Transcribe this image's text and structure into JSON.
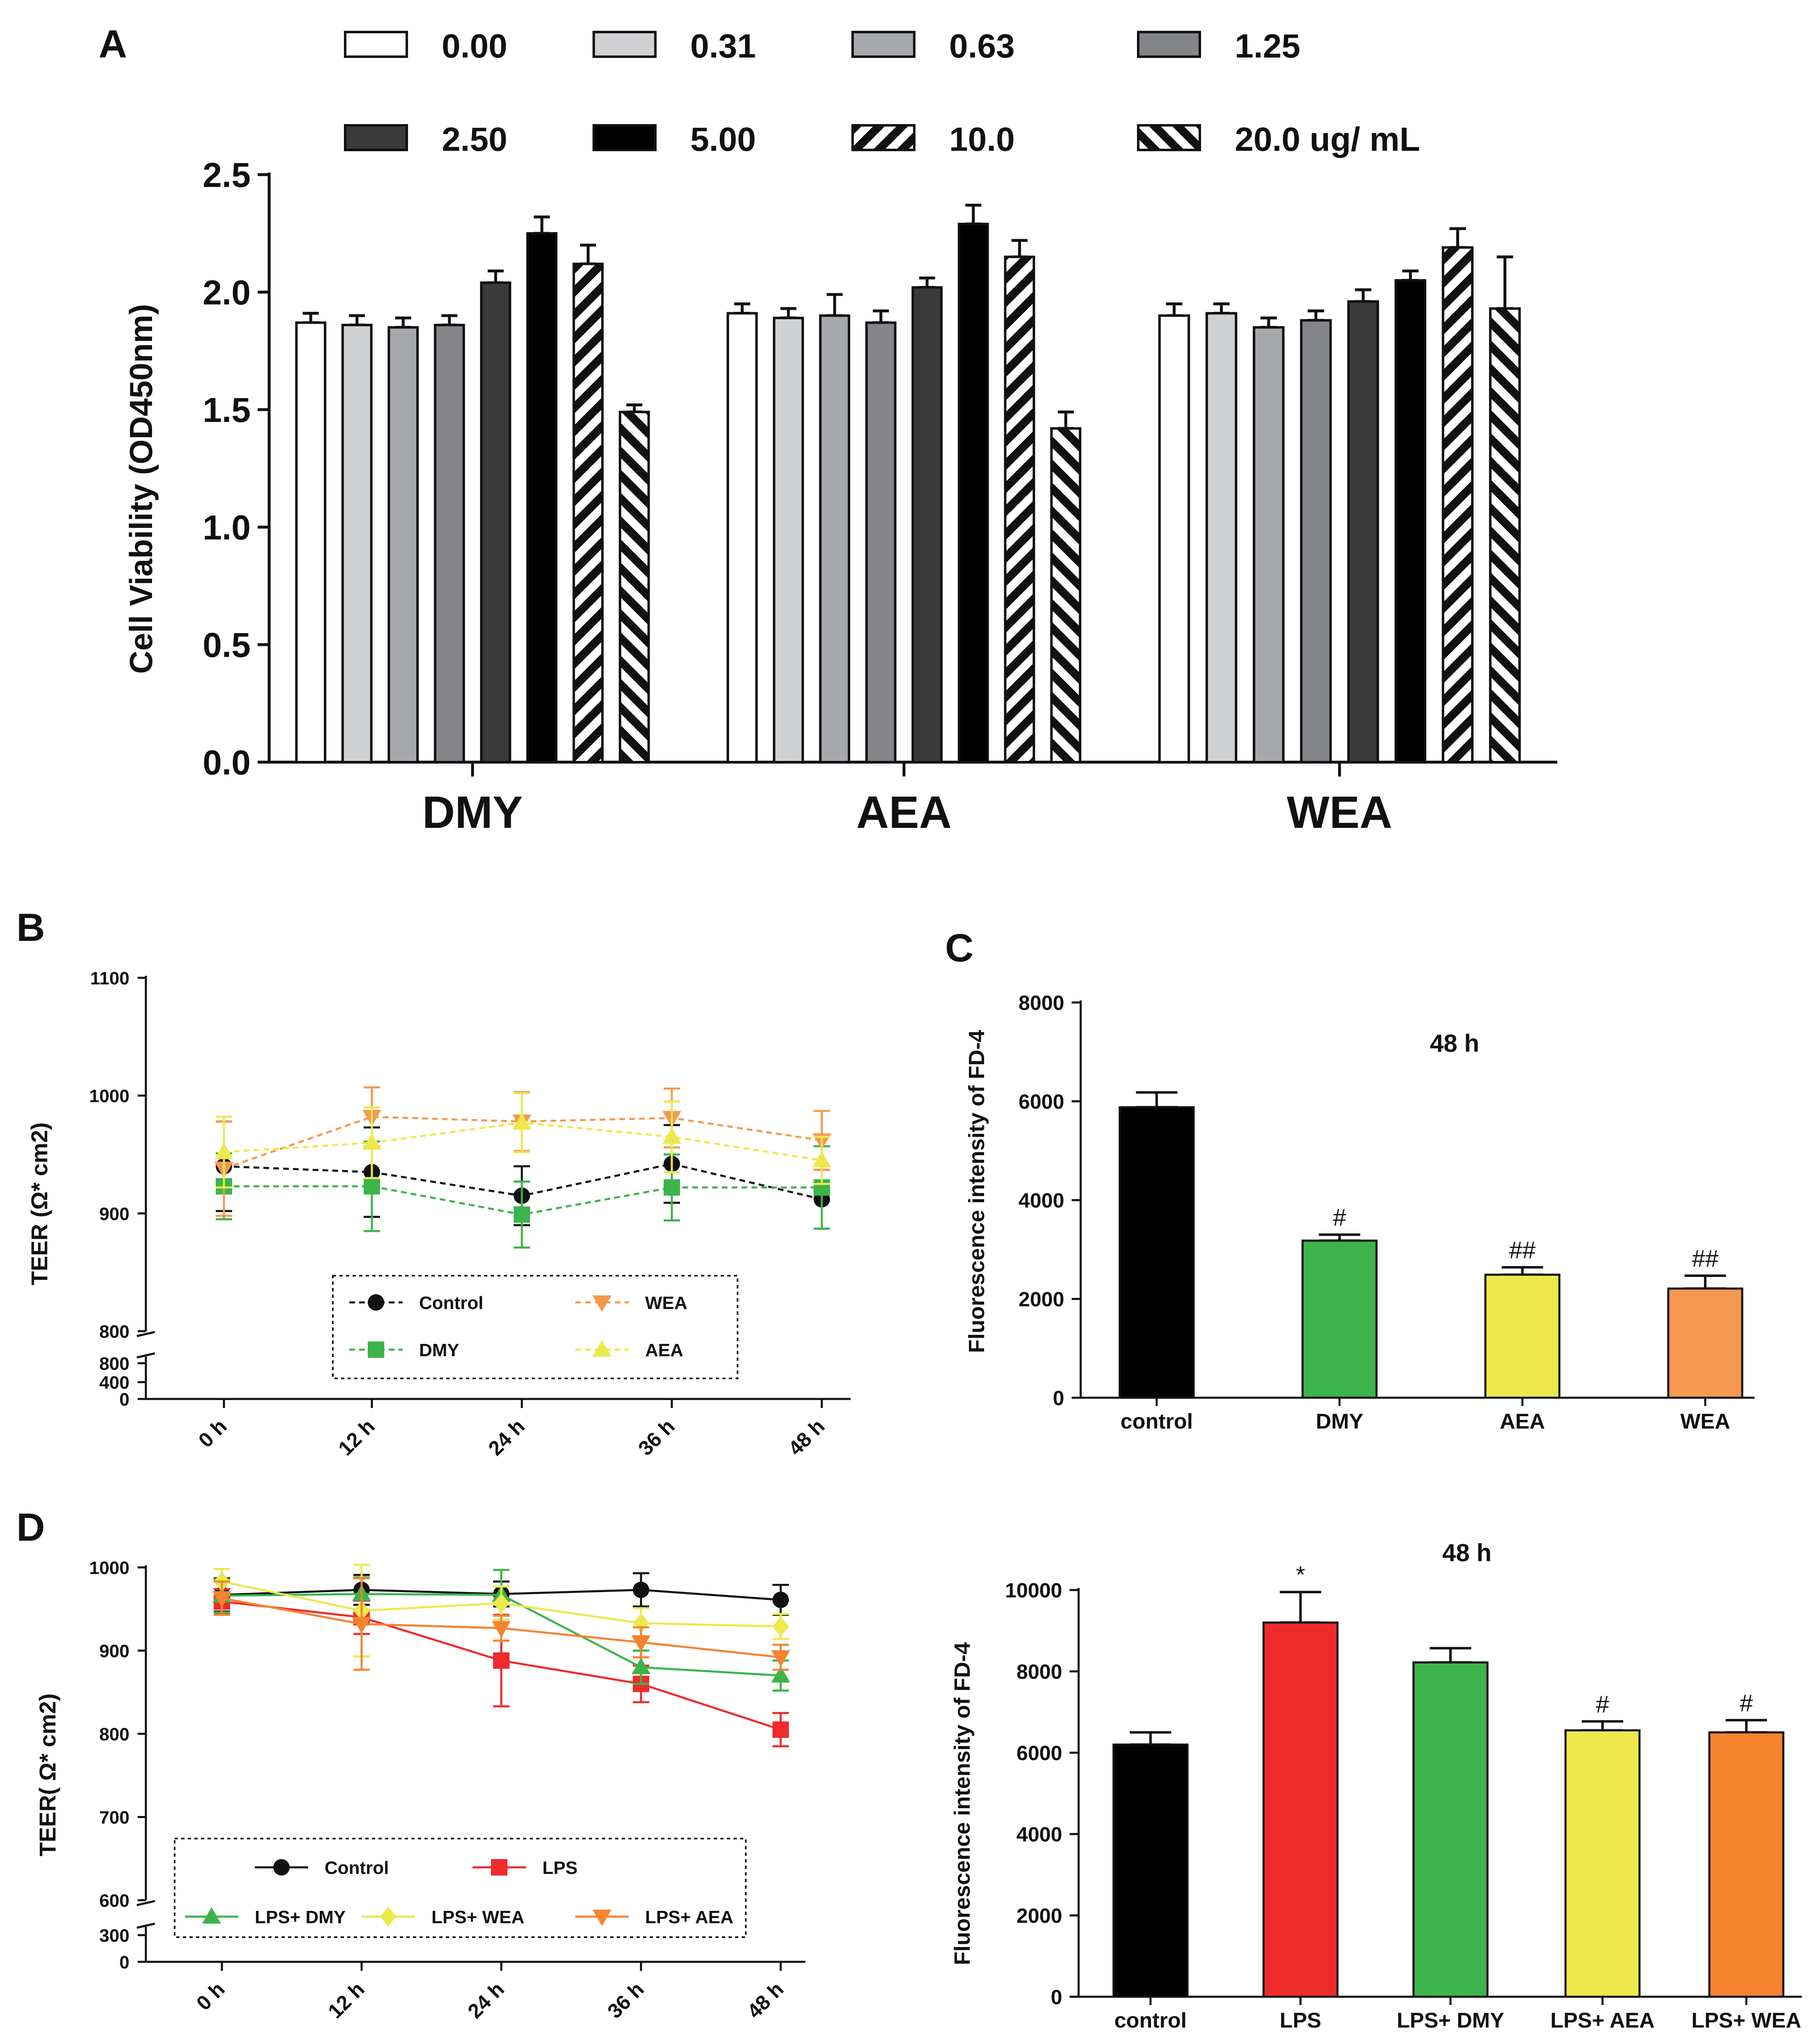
{
  "colors": {
    "black": "#000000",
    "green": "#3cb44b",
    "yellow": "#ede84c",
    "orange": "#f4994f",
    "red": "#ef2b2b",
    "orangeD": "#f58330"
  },
  "chart_data": [
    {
      "id": "A",
      "type": "bar",
      "panel_label": "A",
      "ylabel": "Cell Viability (OD450nm)",
      "ylim": [
        0,
        2.5
      ],
      "yticks": [
        "0.0",
        "0.5",
        "1.0",
        "1.5",
        "2.0",
        "2.5"
      ],
      "categories": [
        "DMY",
        "AEA",
        "WEA"
      ],
      "legend": [
        "0.00",
        "0.31",
        "0.63",
        "1.25",
        "2.50",
        "5.00",
        "10.0",
        "20.0 ug/ mL"
      ],
      "series": [
        {
          "name": "0.00",
          "values": [
            1.87,
            1.91,
            1.9
          ],
          "errors": [
            0.04,
            0.04,
            0.05
          ]
        },
        {
          "name": "0.31",
          "values": [
            1.86,
            1.89,
            1.91
          ],
          "errors": [
            0.04,
            0.04,
            0.04
          ]
        },
        {
          "name": "0.63",
          "values": [
            1.85,
            1.9,
            1.85
          ],
          "errors": [
            0.04,
            0.09,
            0.04
          ]
        },
        {
          "name": "1.25",
          "values": [
            1.86,
            1.87,
            1.88
          ],
          "errors": [
            0.04,
            0.05,
            0.04
          ]
        },
        {
          "name": "2.50",
          "values": [
            2.04,
            2.02,
            1.96
          ],
          "errors": [
            0.05,
            0.04,
            0.05
          ]
        },
        {
          "name": "5.00",
          "values": [
            2.25,
            2.29,
            2.05
          ],
          "errors": [
            0.07,
            0.08,
            0.04
          ]
        },
        {
          "name": "10.0",
          "values": [
            2.12,
            2.15,
            2.19
          ],
          "errors": [
            0.08,
            0.07,
            0.08
          ]
        },
        {
          "name": "20.0 ug/ mL",
          "values": [
            1.49,
            1.42,
            1.93
          ],
          "errors": [
            0.03,
            0.07,
            0.22
          ]
        }
      ]
    },
    {
      "id": "B",
      "type": "line",
      "panel_label": "B",
      "ylabel": "TEER (Ω* cm2)",
      "x": [
        "0 h",
        "12 h",
        "24 h",
        "36 h",
        "48 h"
      ],
      "yticks_upper": [
        "800",
        "900",
        "1000",
        "1100"
      ],
      "yticks_lower": [
        "800",
        "400",
        "0"
      ],
      "ylim": [
        800,
        1100
      ],
      "series": [
        {
          "name": "Control",
          "values": [
            940,
            935,
            915,
            942,
            912
          ],
          "errors": [
            38,
            38,
            25,
            33,
            25
          ]
        },
        {
          "name": "DMY",
          "values": [
            923,
            923,
            899,
            922,
            922
          ],
          "errors": [
            28,
            38,
            28,
            28,
            35
          ]
        },
        {
          "name": "WEA",
          "values": [
            938,
            982,
            978,
            981,
            962
          ],
          "errors": [
            40,
            25,
            25,
            25,
            25
          ]
        },
        {
          "name": "AEA",
          "values": [
            952,
            960,
            977,
            965,
            945
          ],
          "errors": [
            30,
            30,
            25,
            30,
            20
          ]
        }
      ]
    },
    {
      "id": "C",
      "type": "bar",
      "panel_label": "C",
      "title": "48 h",
      "ylabel": "Fluorescence intensity of FD-4",
      "ylim": [
        0,
        8000
      ],
      "yticks": [
        "0",
        "2000",
        "4000",
        "6000",
        "8000"
      ],
      "categories": [
        "control",
        "DMY",
        "AEA",
        "WEA"
      ],
      "values": [
        5880,
        3180,
        2490,
        2210
      ],
      "errors": [
        300,
        120,
        150,
        260
      ],
      "annotations": [
        "",
        "#",
        "##",
        "##"
      ]
    },
    {
      "id": "D",
      "type": "line",
      "panel_label": "D",
      "ylabel": "TEER( Ω* cm2)",
      "x": [
        "0 h",
        "12 h",
        "24 h",
        "36 h",
        "48 h"
      ],
      "yticks_upper": [
        "600",
        "700",
        "800",
        "900",
        "1000"
      ],
      "yticks_lower": [
        "300",
        "0"
      ],
      "ylim": [
        600,
        1000
      ],
      "series": [
        {
          "name": "Control",
          "values": [
            967,
            973,
            968,
            973,
            961
          ],
          "errors": [
            20,
            18,
            15,
            20,
            18
          ]
        },
        {
          "name": "LPS",
          "values": [
            959,
            940,
            888,
            860,
            805
          ],
          "errors": [
            15,
            20,
            55,
            22,
            20
          ]
        },
        {
          "name": "LPS+ DMY",
          "values": [
            966,
            968,
            967,
            880,
            870
          ],
          "errors": [
            20,
            20,
            30,
            20,
            18
          ]
        },
        {
          "name": "LPS+ WEA",
          "values": [
            983,
            948,
            957,
            933,
            929
          ],
          "errors": [
            15,
            55,
            20,
            18,
            15
          ]
        },
        {
          "name": "LPS+ AEA",
          "values": [
            963,
            932,
            927,
            910,
            892
          ],
          "errors": [
            20,
            55,
            15,
            18,
            15
          ]
        }
      ]
    },
    {
      "id": "E",
      "type": "bar",
      "title": "48 h",
      "ylabel": "Fluorescence intensity of FD-4",
      "ylim": [
        0,
        10000
      ],
      "yticks": [
        "0",
        "2000",
        "4000",
        "6000",
        "8000",
        "10000"
      ],
      "categories": [
        "control",
        "LPS",
        "LPS+ DMY",
        "LPS+ AEA",
        "LPS+ WEA"
      ],
      "values": [
        6200,
        9200,
        8220,
        6550,
        6500
      ],
      "errors": [
        300,
        750,
        350,
        220,
        300
      ],
      "annotations": [
        "",
        "*",
        "",
        "#",
        "#"
      ]
    }
  ]
}
